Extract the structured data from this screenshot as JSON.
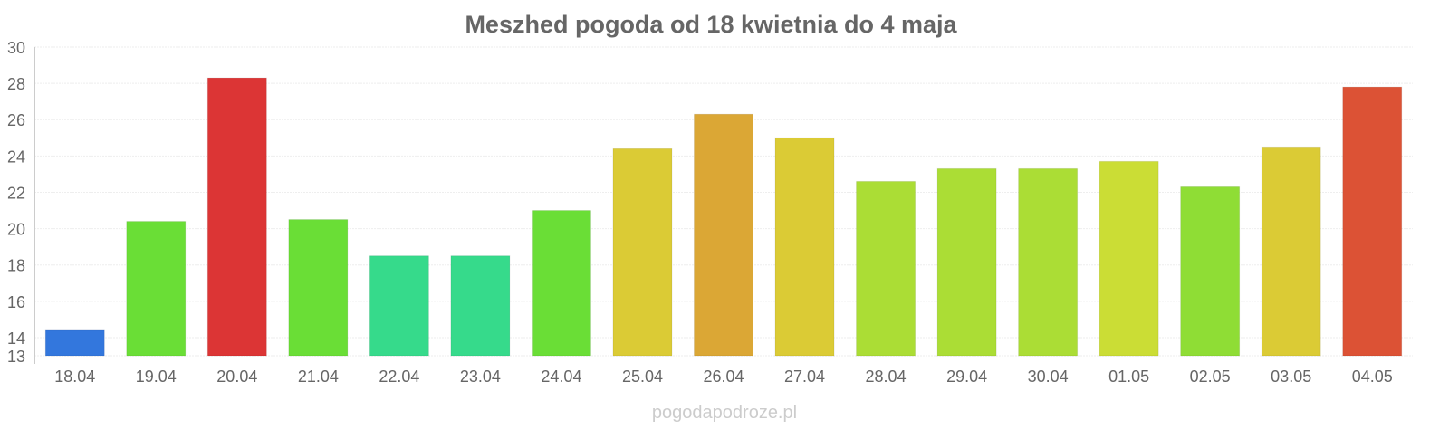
{
  "chart_data": {
    "type": "bar",
    "title": "Meszhed pogoda od 18 kwietnia do 4 maja",
    "xlabel": "",
    "ylabel": "",
    "ylim": [
      13,
      30
    ],
    "yticks": [
      13,
      14,
      16,
      18,
      20,
      22,
      24,
      26,
      28,
      30
    ],
    "grid": true,
    "categories": [
      "18.04",
      "19.04",
      "20.04",
      "21.04",
      "22.04",
      "23.04",
      "24.04",
      "25.04",
      "26.04",
      "27.04",
      "28.04",
      "29.04",
      "30.04",
      "01.05",
      "02.05",
      "03.05",
      "04.05"
    ],
    "values": [
      14.4,
      20.4,
      28.3,
      20.5,
      18.5,
      18.5,
      21.0,
      24.4,
      26.3,
      25.0,
      22.6,
      23.3,
      23.3,
      23.7,
      22.3,
      24.5,
      27.8
    ],
    "colors": [
      "#3377dd",
      "#6ade36",
      "#dc3535",
      "#6ade36",
      "#36da8b",
      "#36da8b",
      "#6ade36",
      "#dbcb35",
      "#dba735",
      "#dbcb35",
      "#abdd35",
      "#abdd35",
      "#abdd35",
      "#cbdd35",
      "#8fdd35",
      "#dbcb35",
      "#dc5235"
    ]
  },
  "watermark": "pogodapodroze.pl"
}
